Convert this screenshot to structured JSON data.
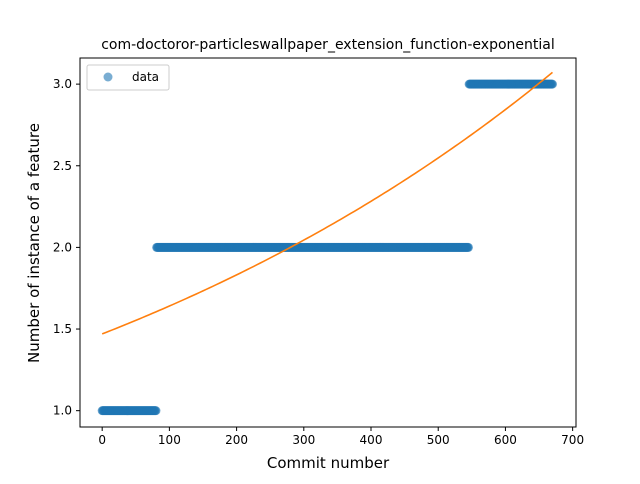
{
  "chart_data": {
    "type": "scatter",
    "title": "com-doctoror-particleswallpaper_extension_function-exponential",
    "xlabel": "Commit number",
    "ylabel": "Number of instance of a feature",
    "xlim": [
      -33,
      705
    ],
    "ylim": [
      0.9,
      3.16
    ],
    "xticks": [
      0,
      100,
      200,
      300,
      400,
      500,
      600,
      700
    ],
    "yticks": [
      1.0,
      1.5,
      2.0,
      2.5,
      3.0
    ],
    "xtick_labels": [
      "0",
      "100",
      "200",
      "300",
      "400",
      "500",
      "600",
      "700"
    ],
    "ytick_labels": [
      "1.0",
      "1.5",
      "2.0",
      "2.5",
      "3.0"
    ],
    "grid": false,
    "legend": {
      "placement": "top-left",
      "entries": [
        "data"
      ]
    },
    "series": [
      {
        "name": "data",
        "kind": "points",
        "color": "#1f77b4",
        "segments": [
          {
            "x_start": 0,
            "x_end": 80,
            "y": 1.0
          },
          {
            "x_start": 81,
            "x_end": 545,
            "y": 2.0
          },
          {
            "x_start": 546,
            "x_end": 670,
            "y": 3.0
          }
        ]
      },
      {
        "kind": "exponential-fit",
        "color": "#ff7f0e",
        "a": 1.47,
        "b": 0.0011,
        "x_range": [
          0,
          670
        ]
      }
    ]
  }
}
